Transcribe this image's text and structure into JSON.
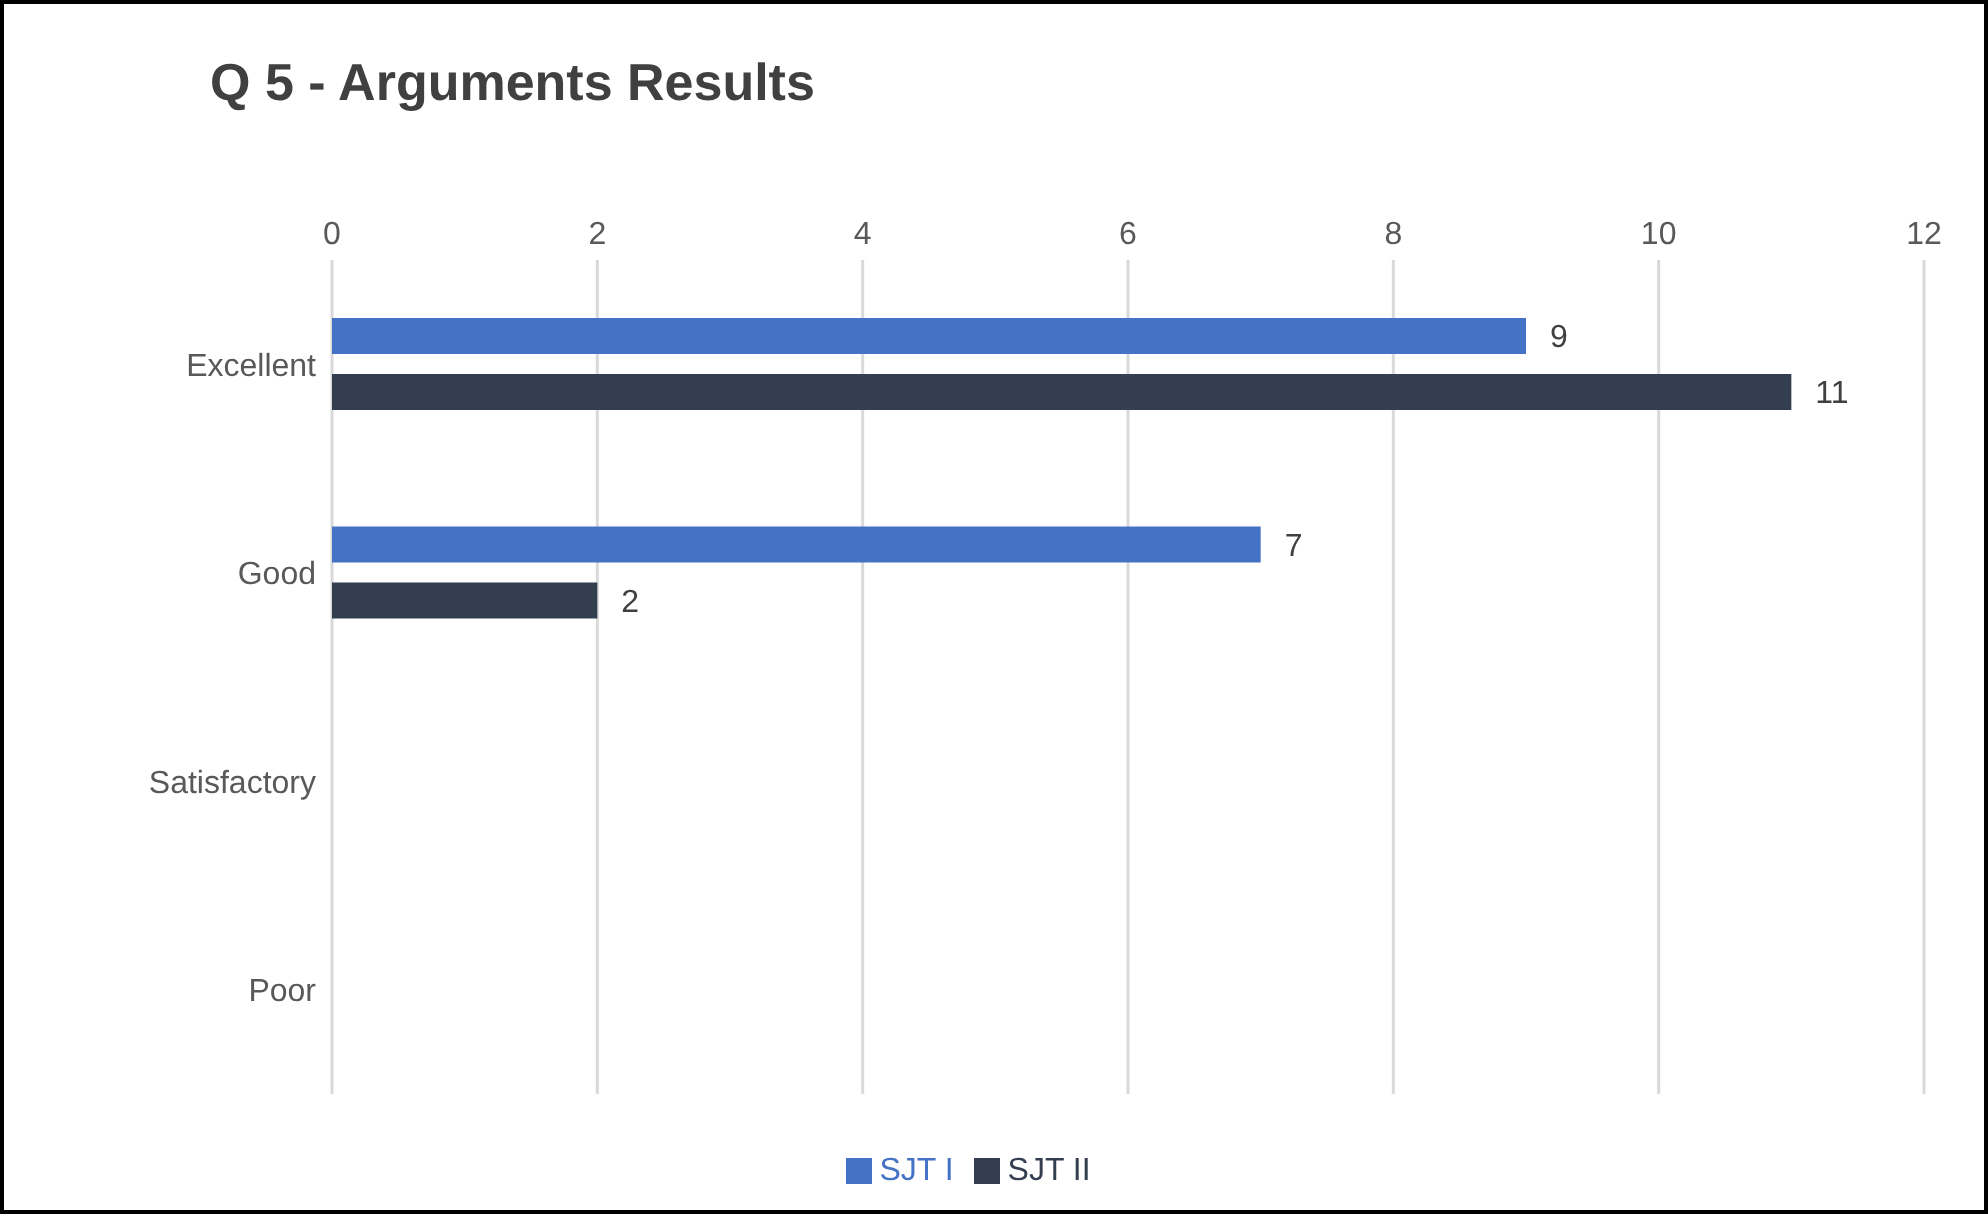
{
  "chart_data": {
    "type": "bar",
    "orientation": "horizontal",
    "title": "Q 5 - Arguments Results",
    "categories": [
      "Excellent",
      "Good",
      "Satisfactory",
      "Poor"
    ],
    "series": [
      {
        "name": "SJT I",
        "color": "#4472c4",
        "values": [
          9,
          7,
          null,
          null
        ]
      },
      {
        "name": "SJT II",
        "color": "#333f50",
        "values": [
          11,
          2,
          null,
          null
        ]
      }
    ],
    "xlim": [
      0,
      12
    ],
    "xticks": [
      0,
      2,
      4,
      6,
      8,
      10,
      12
    ],
    "grid": "x",
    "legend": "bottom",
    "data_labels": true
  }
}
